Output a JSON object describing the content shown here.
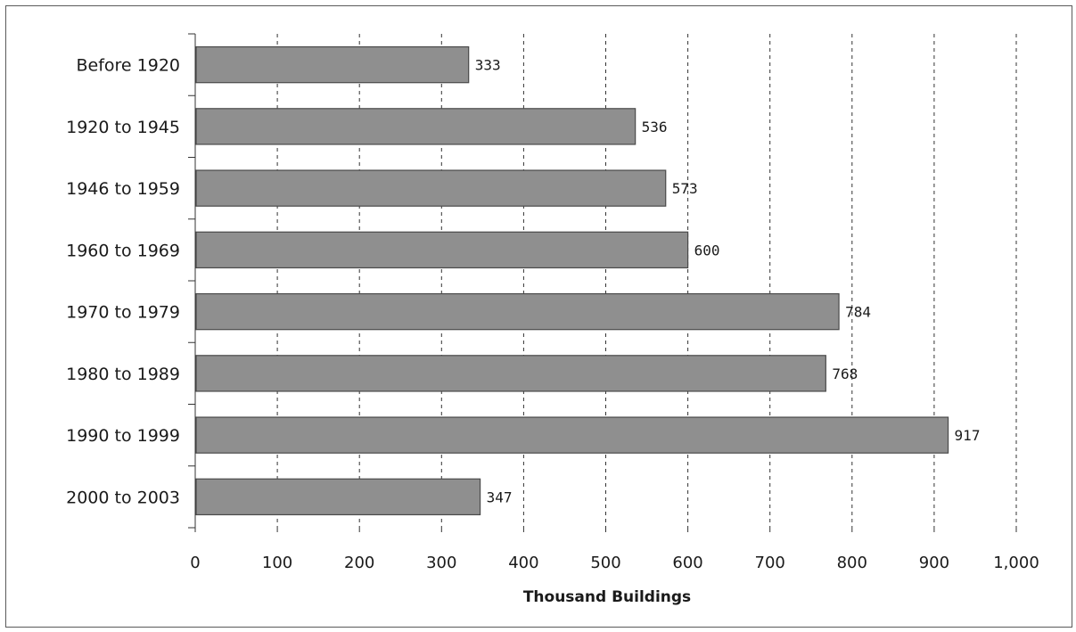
{
  "chart_data": {
    "type": "bar",
    "orientation": "horizontal",
    "categories": [
      "Before 1920",
      "1920 to 1945",
      "1946 to 1959",
      "1960 to 1969",
      "1970 to 1979",
      "1980 to 1989",
      "1990 to 1999",
      "2000 to 2003"
    ],
    "values": [
      333,
      536,
      573,
      600,
      784,
      768,
      917,
      347
    ],
    "data_labels": [
      "333",
      "536",
      "573",
      "600",
      "784",
      "768",
      "917",
      "347"
    ],
    "xlabel": "Thousand Buildings",
    "ylabel": "",
    "xlim": [
      0,
      1000
    ],
    "x_ticks": [
      0,
      100,
      200,
      300,
      400,
      500,
      600,
      700,
      800,
      900,
      1000
    ],
    "x_tick_labels": [
      "0",
      "100",
      "200",
      "300",
      "400",
      "500",
      "600",
      "700",
      "800",
      "900",
      "1,000"
    ],
    "grid": "vertical dashed",
    "legend": "none",
    "colors": {
      "bar_fill": "#8f8f8f",
      "bar_stroke": "#4a4a4a",
      "grid": "#333333",
      "axis": "#333333"
    }
  }
}
